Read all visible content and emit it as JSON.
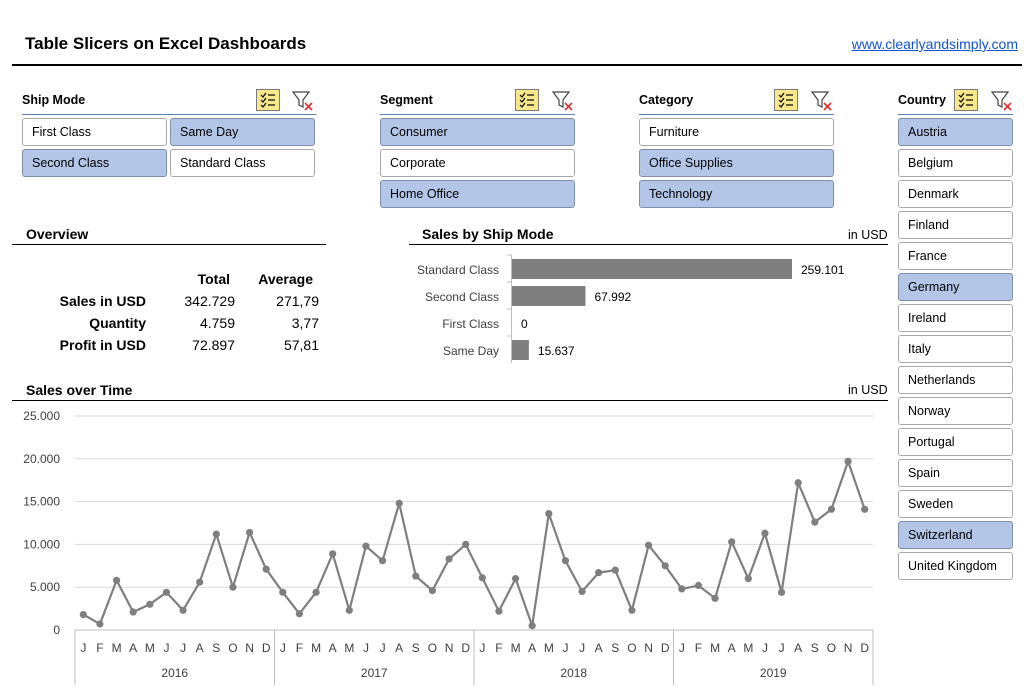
{
  "title": "Table Slicers on Excel Dashboards",
  "link": "www.clearlyandsimply.com",
  "slicers": {
    "ship_mode": {
      "title": "Ship Mode",
      "items": [
        {
          "label": "First Class",
          "selected": false
        },
        {
          "label": "Same Day",
          "selected": true
        },
        {
          "label": "Second Class",
          "selected": true
        },
        {
          "label": "Standard Class",
          "selected": false
        }
      ]
    },
    "segment": {
      "title": "Segment",
      "items": [
        {
          "label": "Consumer",
          "selected": true
        },
        {
          "label": "Corporate",
          "selected": false
        },
        {
          "label": "Home Office",
          "selected": true
        }
      ]
    },
    "category": {
      "title": "Category",
      "items": [
        {
          "label": "Furniture",
          "selected": false
        },
        {
          "label": "Office Supplies",
          "selected": true
        },
        {
          "label": "Technology",
          "selected": true
        }
      ]
    },
    "country": {
      "title": "Country",
      "items": [
        {
          "label": "Austria",
          "selected": true
        },
        {
          "label": "Belgium",
          "selected": false
        },
        {
          "label": "Denmark",
          "selected": false
        },
        {
          "label": "Finland",
          "selected": false
        },
        {
          "label": "France",
          "selected": false
        },
        {
          "label": "Germany",
          "selected": true
        },
        {
          "label": "Ireland",
          "selected": false
        },
        {
          "label": "Italy",
          "selected": false
        },
        {
          "label": "Netherlands",
          "selected": false
        },
        {
          "label": "Norway",
          "selected": false
        },
        {
          "label": "Portugal",
          "selected": false
        },
        {
          "label": "Spain",
          "selected": false
        },
        {
          "label": "Sweden",
          "selected": false
        },
        {
          "label": "Switzerland",
          "selected": true
        },
        {
          "label": "United Kingdom",
          "selected": false
        }
      ]
    }
  },
  "overview": {
    "title": "Overview",
    "columns": [
      "Total",
      "Average"
    ],
    "rows": [
      {
        "label": "Sales in USD",
        "total": "342.729",
        "average": "271,79"
      },
      {
        "label": "Quantity",
        "total": "4.759",
        "average": "3,77"
      },
      {
        "label": "Profit in USD",
        "total": "72.897",
        "average": "57,81"
      }
    ]
  },
  "chart_data": [
    {
      "type": "bar",
      "title": "Sales by Ship Mode",
      "unit": "in USD",
      "categories": [
        "Standard Class",
        "Second Class",
        "First Class",
        "Same Day"
      ],
      "values": [
        259101,
        67992,
        0,
        15637
      ],
      "labels": [
        "259.101",
        "67.992",
        "0",
        "15.637"
      ],
      "color": "#7f7f7f"
    },
    {
      "type": "line",
      "title": "Sales over Time",
      "unit": "in USD",
      "ylim": [
        0,
        25000
      ],
      "yticks": [
        "0",
        "5.000",
        "10.000",
        "15.000",
        "20.000",
        "25.000"
      ],
      "ytick_values": [
        0,
        5000,
        10000,
        15000,
        20000,
        25000
      ],
      "years": [
        "2016",
        "2017",
        "2018",
        "2019"
      ],
      "months": [
        "J",
        "F",
        "M",
        "A",
        "M",
        "J",
        "J",
        "A",
        "S",
        "O",
        "N",
        "D"
      ],
      "color": "#7f7f7f",
      "values": [
        1800,
        700,
        5800,
        2100,
        3000,
        4400,
        2300,
        5600,
        11200,
        5000,
        11400,
        7100,
        4400,
        1900,
        4400,
        8900,
        2300,
        9800,
        8100,
        14800,
        6300,
        4600,
        8300,
        10000,
        6100,
        2200,
        6000,
        500,
        13600,
        8100,
        4500,
        6700,
        7000,
        2300,
        9900,
        7500,
        4800,
        5200,
        3700,
        10300,
        6000,
        11300,
        4400,
        17200,
        12600,
        14100,
        19700,
        14100
      ]
    }
  ]
}
